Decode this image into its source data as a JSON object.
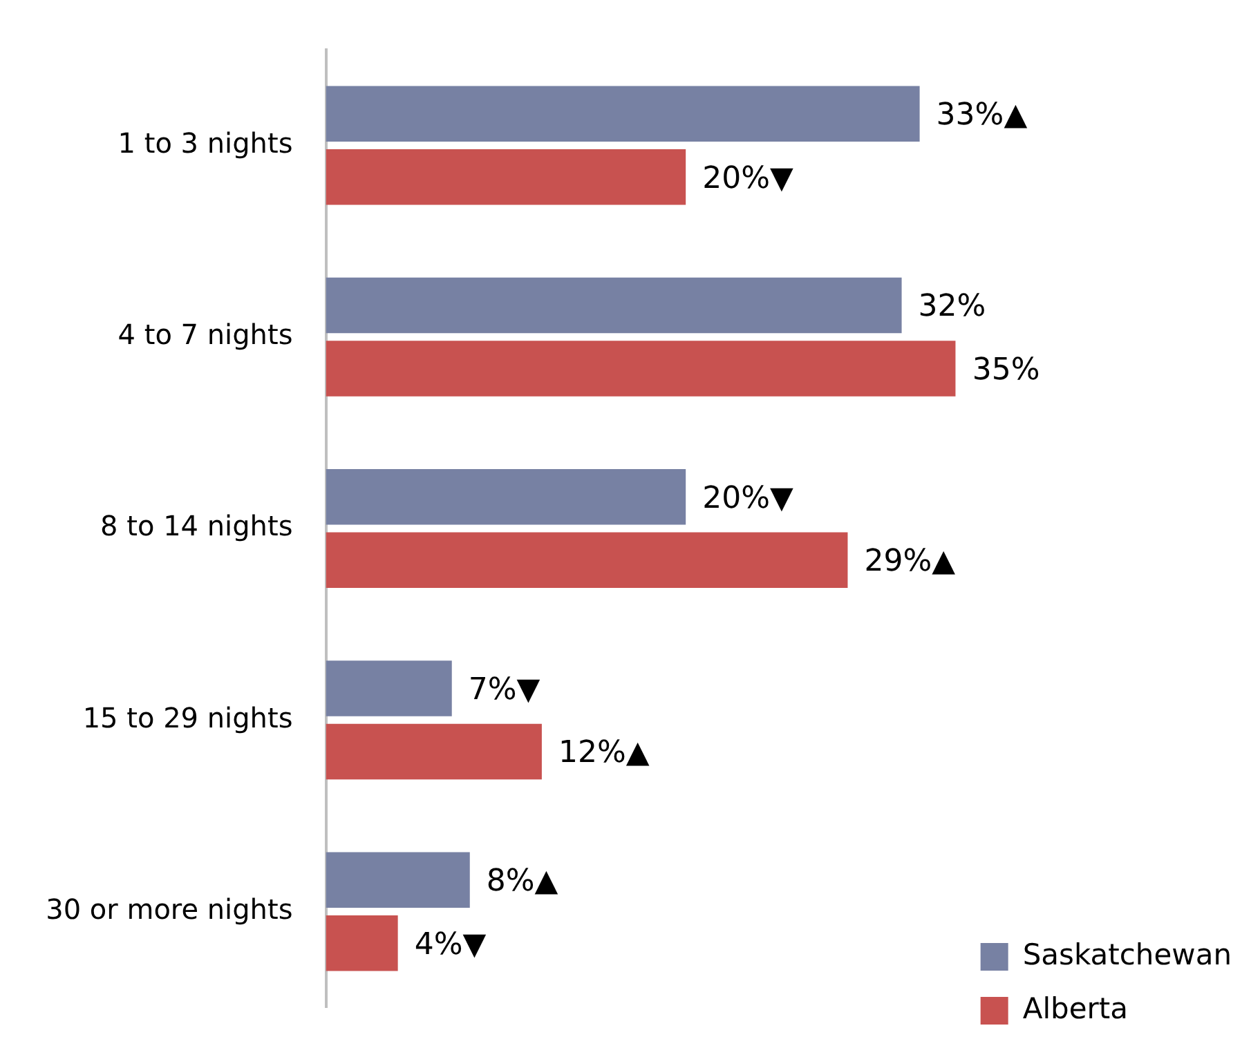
{
  "chart_data": {
    "type": "bar",
    "orientation": "horizontal",
    "categories": [
      "1 to 3 nights",
      "4 to 7 nights",
      "8 to 14 nights",
      "15 to 29 nights",
      "30 or more nights"
    ],
    "series": [
      {
        "name": "Saskatchewan",
        "color": "#7781a3",
        "values": [
          33,
          32,
          20,
          7,
          8
        ],
        "value_labels": [
          "33%▲",
          "32%",
          "20%▼",
          "7%▼",
          "8%▲"
        ]
      },
      {
        "name": "Alberta",
        "color": "#c85250",
        "values": [
          20,
          35,
          29,
          12,
          4
        ],
        "value_labels": [
          "20%▼",
          "35%",
          "29%▲",
          "12%▲",
          "4%▼"
        ]
      }
    ],
    "legend": "bottom right"
  }
}
